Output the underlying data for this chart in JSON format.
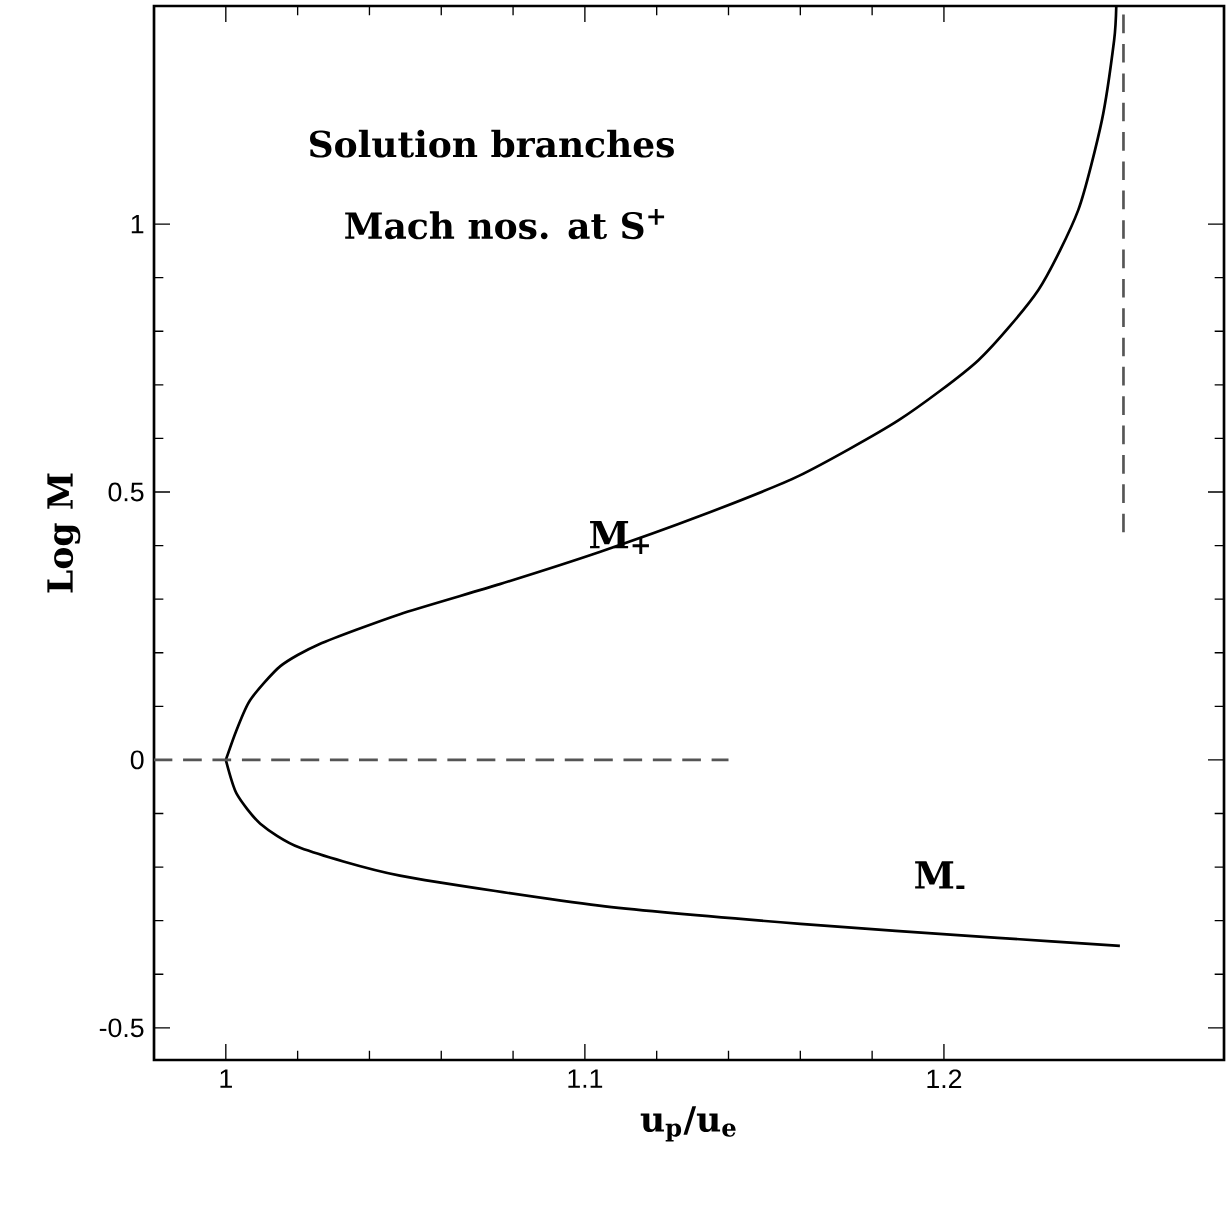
{
  "chart_data": {
    "type": "line",
    "title": "Solution branches",
    "subtitle": "Mach nos. at S$^{+}$",
    "xlabel": "u$_{p}$/u$_{e}$",
    "ylabel": "Log  M",
    "xlim": [
      0.98,
      1.278
    ],
    "ylim": [
      -0.56,
      1.407
    ],
    "xticks": [
      1,
      1.1,
      1.2
    ],
    "yticks": [
      -0.5,
      0,
      0.5,
      1
    ],
    "grid": false,
    "legend": false,
    "marker": "none",
    "series": [
      {
        "name": "M$_{+}$",
        "color": "#000000",
        "line_style": "solid",
        "x": [
          1.0,
          1.003,
          1.0068,
          1.0152,
          1.026,
          1.0485,
          1.0763,
          1.1041,
          1.132,
          1.1596,
          1.1874,
          1.2096,
          1.2263,
          1.2374,
          1.244,
          1.2474,
          1.248
        ],
        "values": [
          0,
          0.056,
          0.112,
          0.175,
          0.216,
          0.272,
          0.328,
          0.388,
          0.455,
          0.53,
          0.634,
          0.746,
          0.877,
          1.026,
          1.194,
          1.343,
          1.407
        ]
      },
      {
        "name": "M$_{-}$",
        "color": "#000000",
        "line_style": "solid",
        "x": [
          1.0,
          1.003,
          1.0096,
          1.0207,
          1.0485,
          1.104,
          1.16,
          1.215,
          1.249
        ],
        "values": [
          0,
          -0.063,
          -0.119,
          -0.164,
          -0.216,
          -0.272,
          -0.306,
          -0.332,
          -0.347
        ]
      },
      {
        "color": "#555555",
        "line_style": "dashed",
        "x": [
          0.98,
          1.14
        ],
        "values": [
          0,
          0
        ]
      },
      {
        "color": "#555555",
        "line_style": "dashed",
        "x": [
          1.25,
          1.25
        ],
        "values": [
          0.425,
          1.407
        ]
      }
    ]
  }
}
